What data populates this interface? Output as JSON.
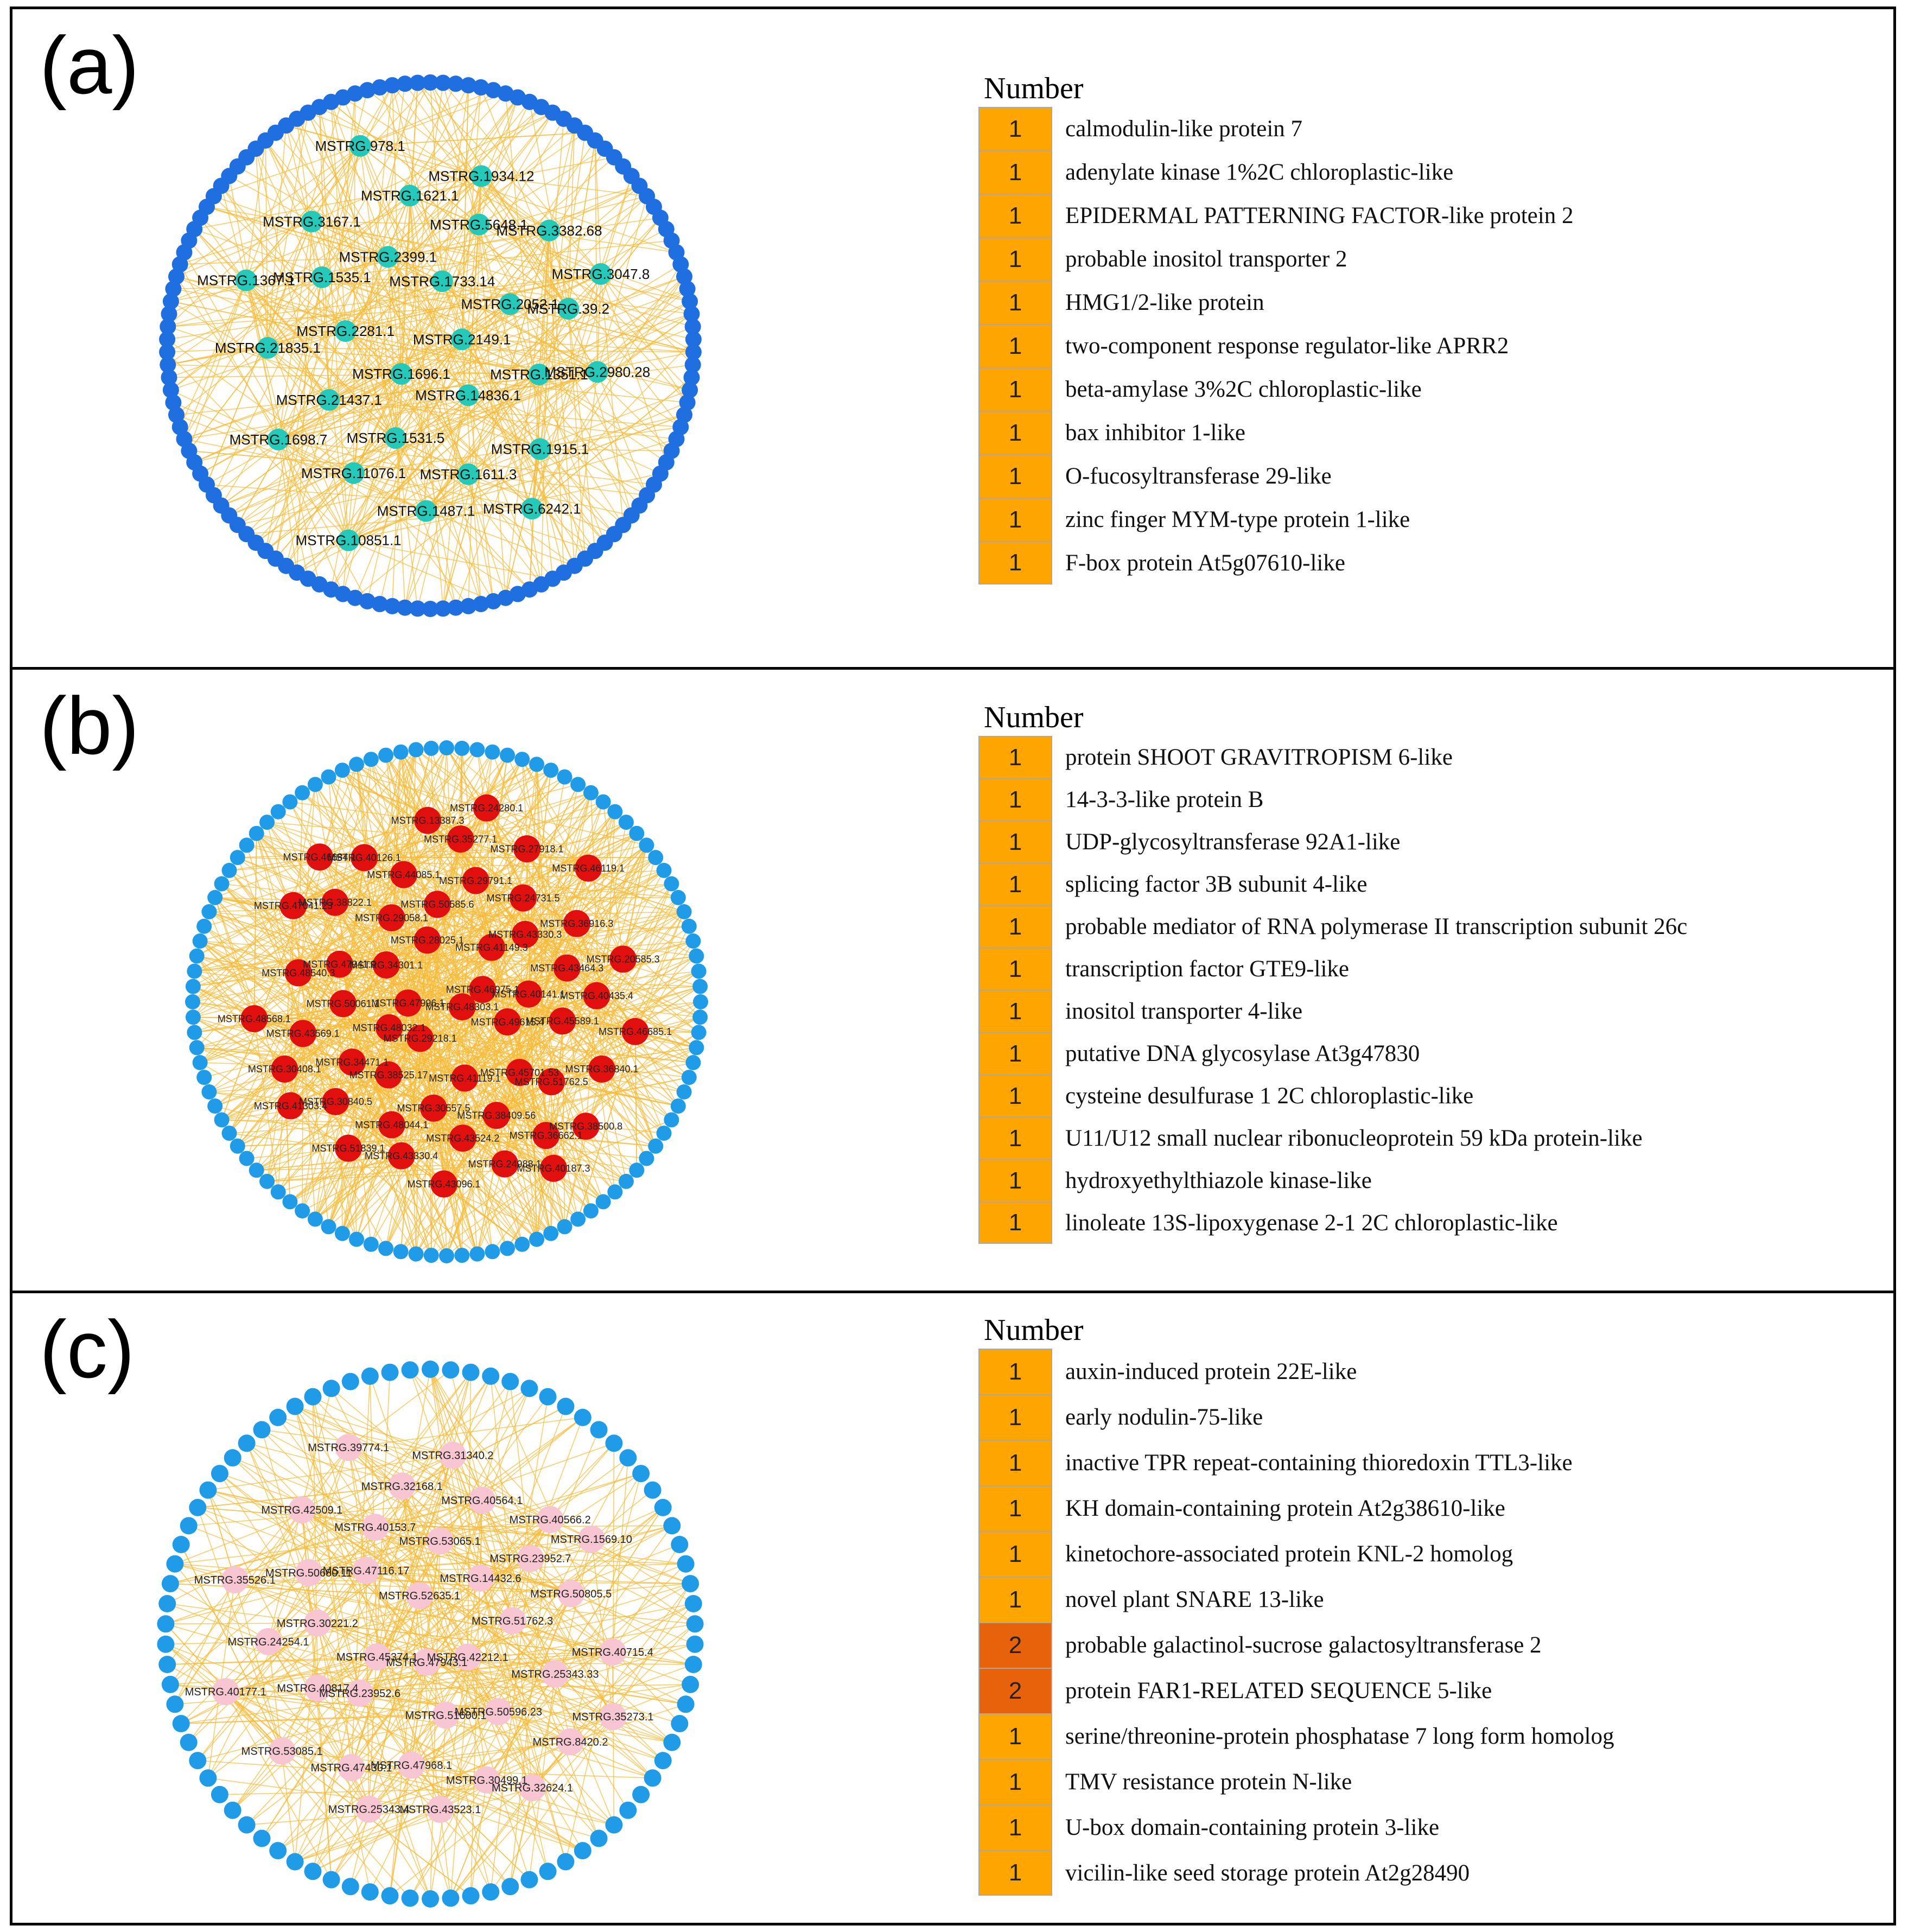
{
  "colors": {
    "edge": "#f5bb3a",
    "outer_a": "#1f6fe0",
    "outer_bc": "#1f9be8",
    "hub_a": "#25c9b9",
    "hub_b": "#e20f0f",
    "hub_c": "#f8c6d3",
    "count_1": "#ffa500",
    "count_2": "#e8620c"
  },
  "panels": [
    {
      "label": "(a)",
      "legend_title": "Number",
      "outer_node_count": 130,
      "nodes": [
        {
          "id": "MSTRG.2149.1"
        },
        {
          "id": "MSTRG.1696.1"
        },
        {
          "id": "MSTRG.1733.14"
        },
        {
          "id": "MSTRG.14836.1"
        },
        {
          "id": "MSTRG.2281.1"
        },
        {
          "id": "MSTRG.2052.1"
        },
        {
          "id": "MSTRG.1531.5"
        },
        {
          "id": "MSTRG.2399.1"
        },
        {
          "id": "MSTRG.1351.1"
        },
        {
          "id": "MSTRG.21437.1"
        },
        {
          "id": "MSTRG.5648.1"
        },
        {
          "id": "MSTRG.1611.3"
        },
        {
          "id": "MSTRG.1535.1"
        },
        {
          "id": "MSTRG.39.2"
        },
        {
          "id": "MSTRG.11076.1"
        },
        {
          "id": "MSTRG.1621.1"
        },
        {
          "id": "MSTRG.1915.1"
        },
        {
          "id": "MSTRG.21835.1"
        },
        {
          "id": "MSTRG.3382.68"
        },
        {
          "id": "MSTRG.1487.1"
        },
        {
          "id": "MSTRG.3167.1"
        },
        {
          "id": "MSTRG.2980.28"
        },
        {
          "id": "MSTRG.1698.7"
        },
        {
          "id": "MSTRG.1934.12"
        },
        {
          "id": "MSTRG.6242.1"
        },
        {
          "id": "MSTRG.1367.1"
        },
        {
          "id": "MSTRG.3047.8"
        },
        {
          "id": "MSTRG.10851.1"
        },
        {
          "id": "MSTRG.978.1"
        }
      ],
      "legend": [
        {
          "count": "1",
          "name": "calmodulin-like protein 7"
        },
        {
          "count": "1",
          "name": "adenylate kinase 1%2C chloroplastic-like"
        },
        {
          "count": "1",
          "name": "EPIDERMAL PATTERNING FACTOR-like protein 2"
        },
        {
          "count": "1",
          "name": "probable inositol transporter 2"
        },
        {
          "count": "1",
          "name": "HMG1/2-like protein"
        },
        {
          "count": "1",
          "name": "two-component response regulator-like APRR2"
        },
        {
          "count": "1",
          "name": "beta-amylase 3%2C chloroplastic-like"
        },
        {
          "count": "1",
          "name": "bax inhibitor 1-like"
        },
        {
          "count": "1",
          "name": "O-fucosyltransferase 29-like"
        },
        {
          "count": "1",
          "name": "zinc finger MYM-type protein 1-like"
        },
        {
          "count": "1",
          "name": "F-box protein At5g07610-like"
        }
      ]
    },
    {
      "label": "(b)",
      "legend_title": "Number",
      "outer_node_count": 104,
      "nodes": [
        {
          "id": "MSTRG.48303.1"
        },
        {
          "id": "MSTRG.47996.1"
        },
        {
          "id": "MSTRG.46975.1"
        },
        {
          "id": "MSTRG.29218.1"
        },
        {
          "id": "MSTRG.28025.1"
        },
        {
          "id": "MSTRG.49615.4"
        },
        {
          "id": "MSTRG.48032.1"
        },
        {
          "id": "MSTRG.41149.3"
        },
        {
          "id": "MSTRG.41119.1"
        },
        {
          "id": "MSTRG.34301.1"
        },
        {
          "id": "MSTRG.40141.1"
        },
        {
          "id": "MSTRG.38525.17"
        },
        {
          "id": "MSTRG.50585.6"
        },
        {
          "id": "MSTRG.45701.53"
        },
        {
          "id": "MSTRG.50061.1"
        },
        {
          "id": "MSTRG.43330.3"
        },
        {
          "id": "MSTRG.30557.5"
        },
        {
          "id": "MSTRG.29058.1"
        },
        {
          "id": "MSTRG.45589.1"
        },
        {
          "id": "MSTRG.34471.1"
        },
        {
          "id": "MSTRG.29791.1"
        },
        {
          "id": "MSTRG.38409.56"
        },
        {
          "id": "MSTRG.47941.9"
        },
        {
          "id": "MSTRG.43464.3"
        },
        {
          "id": "MSTRG.48044.1"
        },
        {
          "id": "MSTRG.44085.1"
        },
        {
          "id": "MSTRG.51762.5"
        },
        {
          "id": "MSTRG.43569.1"
        },
        {
          "id": "MSTRG.24731.5"
        },
        {
          "id": "MSTRG.43524.2"
        },
        {
          "id": "MSTRG.38822.1"
        },
        {
          "id": "MSTRG.40435.4"
        },
        {
          "id": "MSTRG.30840.5"
        },
        {
          "id": "MSTRG.35277.1"
        },
        {
          "id": "MSTRG.36662.1"
        },
        {
          "id": "MSTRG.48540.3"
        },
        {
          "id": "MSTRG.36916.3"
        },
        {
          "id": "MSTRG.43330.4"
        },
        {
          "id": "MSTRG.40126.1"
        },
        {
          "id": "MSTRG.36840.1"
        },
        {
          "id": "MSTRG.30408.1"
        },
        {
          "id": "MSTRG.27918.1"
        },
        {
          "id": "MSTRG.24988.1"
        },
        {
          "id": "MSTRG.47041.23"
        },
        {
          "id": "MSTRG.20585.3"
        },
        {
          "id": "MSTRG.51839.1"
        },
        {
          "id": "MSTRG.13387.3"
        },
        {
          "id": "MSTRG.38500.8"
        },
        {
          "id": "MSTRG.48568.1"
        },
        {
          "id": "MSTRG.46119.1"
        },
        {
          "id": "MSTRG.43096.1"
        },
        {
          "id": "MSTRG.46684.1"
        },
        {
          "id": "MSTRG.46685.1"
        },
        {
          "id": "MSTRG.41303.4"
        },
        {
          "id": "MSTRG.24280.1"
        },
        {
          "id": "MSTRG.40187.3"
        }
      ],
      "legend": [
        {
          "count": "1",
          "name": "protein SHOOT GRAVITROPISM 6-like"
        },
        {
          "count": "1",
          "name": "14-3-3-like protein B"
        },
        {
          "count": "1",
          "name": "UDP-glycosyltransferase 92A1-like"
        },
        {
          "count": "1",
          "name": "splicing factor 3B subunit 4-like"
        },
        {
          "count": "1",
          "name": "probable mediator of RNA polymerase II transcription subunit 26c"
        },
        {
          "count": "1",
          "name": "transcription factor GTE9-like"
        },
        {
          "count": "1",
          "name": "inositol transporter 4-like"
        },
        {
          "count": "1",
          "name": "putative DNA glycosylase At3g47830"
        },
        {
          "count": "1",
          "name": "cysteine desulfurase 1 2C chloroplastic-like"
        },
        {
          "count": "1",
          "name": "U11/U12 small nuclear ribonucleoprotein 59 kDa protein-like"
        },
        {
          "count": "1",
          "name": "hydroxyethylthiazole kinase-like"
        },
        {
          "count": "1",
          "name": "linoleate 13S-lipoxygenase 2-1 2C chloroplastic-like"
        }
      ]
    },
    {
      "label": "(c)",
      "legend_title": "Number",
      "outer_node_count": 82,
      "nodes": [
        {
          "id": "MSTRG.47943.1"
        },
        {
          "id": "MSTRG.52635.1"
        },
        {
          "id": "MSTRG.42212.1"
        },
        {
          "id": "MSTRG.45374.1"
        },
        {
          "id": "MSTRG.14432.6"
        },
        {
          "id": "MSTRG.51600.1"
        },
        {
          "id": "MSTRG.47116.17"
        },
        {
          "id": "MSTRG.51762.3"
        },
        {
          "id": "MSTRG.23952.6"
        },
        {
          "id": "MSTRG.53065.1"
        },
        {
          "id": "MSTRG.50596.23"
        },
        {
          "id": "MSTRG.30221.2"
        },
        {
          "id": "MSTRG.23952.7"
        },
        {
          "id": "MSTRG.47968.1"
        },
        {
          "id": "MSTRG.40153.7"
        },
        {
          "id": "MSTRG.25343.33"
        },
        {
          "id": "MSTRG.40817.4"
        },
        {
          "id": "MSTRG.40564.1"
        },
        {
          "id": "MSTRG.30499.1"
        },
        {
          "id": "MSTRG.50680.11"
        },
        {
          "id": "MSTRG.50805.5"
        },
        {
          "id": "MSTRG.47430.1"
        },
        {
          "id": "MSTRG.32168.1"
        },
        {
          "id": "MSTRG.8420.2"
        },
        {
          "id": "MSTRG.24254.1"
        },
        {
          "id": "MSTRG.40566.2"
        },
        {
          "id": "MSTRG.43523.1"
        },
        {
          "id": "MSTRG.42509.1"
        },
        {
          "id": "MSTRG.40715.4"
        },
        {
          "id": "MSTRG.53085.1"
        },
        {
          "id": "MSTRG.31340.2"
        },
        {
          "id": "MSTRG.32624.1"
        },
        {
          "id": "MSTRG.35526.1"
        },
        {
          "id": "MSTRG.1569.10"
        },
        {
          "id": "MSTRG.25343.4"
        },
        {
          "id": "MSTRG.39774.1"
        },
        {
          "id": "MSTRG.35273.1"
        },
        {
          "id": "MSTRG.40177.1"
        }
      ],
      "legend": [
        {
          "count": "1",
          "name": "auxin-induced protein 22E-like"
        },
        {
          "count": "1",
          "name": "early nodulin-75-like"
        },
        {
          "count": "1",
          "name": "inactive TPR repeat-containing thioredoxin TTL3-like"
        },
        {
          "count": "1",
          "name": "KH domain-containing protein At2g38610-like"
        },
        {
          "count": "1",
          "name": "kinetochore-associated protein KNL-2 homolog"
        },
        {
          "count": "1",
          "name": "novel plant SNARE 13-like"
        },
        {
          "count": "2",
          "name": "probable galactinol-sucrose galactosyltransferase 2"
        },
        {
          "count": "2",
          "name": "protein FAR1-RELATED SEQUENCE 5-like"
        },
        {
          "count": "1",
          "name": "serine/threonine-protein phosphatase 7 long form homolog"
        },
        {
          "count": "1",
          "name": "TMV resistance protein N-like"
        },
        {
          "count": "1",
          "name": "U-box domain-containing protein 3-like"
        },
        {
          "count": "1",
          "name": "vicilin-like seed storage protein At2g28490"
        }
      ]
    }
  ]
}
